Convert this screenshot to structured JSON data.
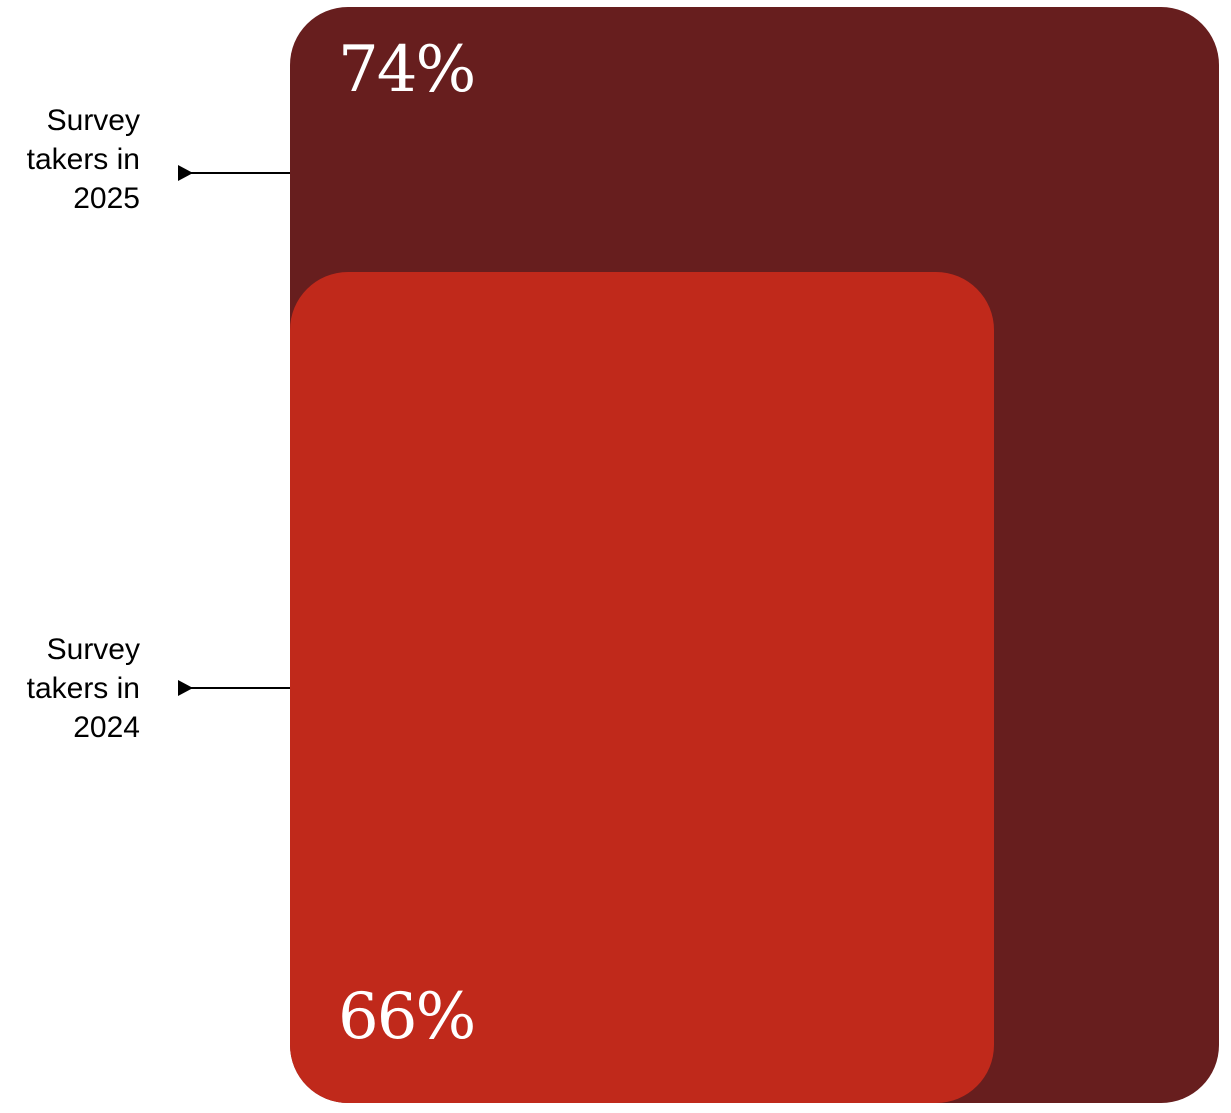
{
  "chart_data": {
    "type": "area",
    "title": "",
    "series": [
      {
        "name": "Survey takers in 2025",
        "value": 74,
        "label": "74%",
        "color": "#671E1E"
      },
      {
        "name": "Survey takers in 2024",
        "value": 66,
        "label": "66%",
        "color": "#C0291B"
      }
    ]
  },
  "labels": {
    "y2025": [
      "Survey",
      "takers in",
      "2025"
    ],
    "y2024": [
      "Survey",
      "takers in",
      "2024"
    ]
  },
  "colors": {
    "accent_dark": "#671E1E",
    "accent_red": "#C0291B",
    "text": "#000000",
    "value_text": "#FFFFFF"
  }
}
